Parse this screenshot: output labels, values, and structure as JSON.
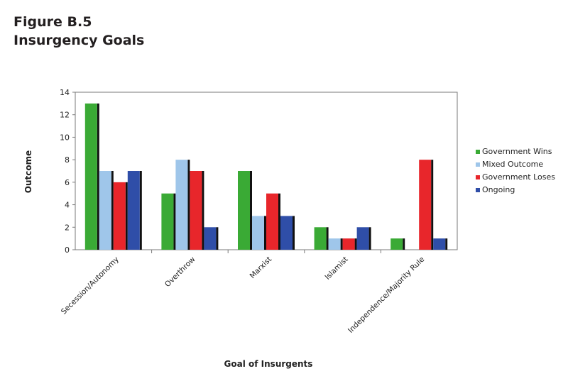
{
  "figure": {
    "label": "Figure B.5",
    "title": "Insurgency Goals"
  },
  "chart_data": {
    "type": "bar",
    "xlabel": "Goal of Insurgents",
    "ylabel": "Outcome",
    "ylim": [
      0,
      14
    ],
    "yticks": [
      0,
      2,
      4,
      6,
      8,
      10,
      12,
      14
    ],
    "grid": false,
    "legend": "right",
    "categories": [
      "Secession/Autonomy",
      "Overthrow",
      "Marxist",
      "Islamist",
      "Independence/Majority Rule"
    ],
    "series": [
      {
        "name": "Government Wins",
        "color": "#3aaa35",
        "values": [
          13,
          5,
          7,
          2,
          1
        ]
      },
      {
        "name": "Mixed Outcome",
        "color": "#9fc6ea",
        "values": [
          7,
          8,
          3,
          1,
          0
        ]
      },
      {
        "name": "Government Loses",
        "color": "#e8262b",
        "values": [
          6,
          7,
          5,
          1,
          8
        ]
      },
      {
        "name": "Ongoing",
        "color": "#2f4ea8",
        "values": [
          7,
          2,
          3,
          2,
          1
        ]
      }
    ]
  }
}
